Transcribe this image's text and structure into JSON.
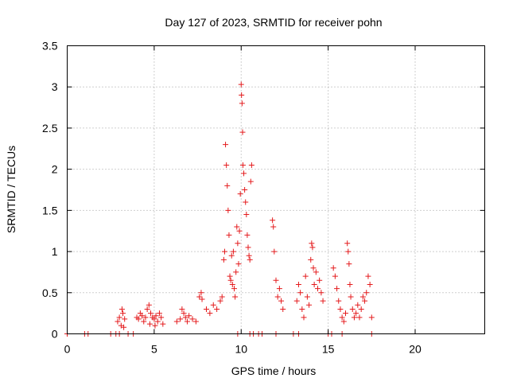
{
  "chart_data": {
    "type": "scatter",
    "title": "Day 127 of 2023, SRMTID for receiver pohn",
    "xlabel": "GPS time / hours",
    "ylabel": "SRMTID / TECUs",
    "xlim": [
      0,
      24
    ],
    "ylim": [
      0,
      3.5
    ],
    "xticks": [
      0,
      5,
      10,
      15,
      20
    ],
    "xtick_labels": [
      "0",
      "5",
      "10",
      "15",
      "20"
    ],
    "yticks": [
      0,
      0.5,
      1,
      1.5,
      2,
      2.5,
      3,
      3.5
    ],
    "ytick_labels": [
      "0",
      "0.5",
      "1",
      "1.5",
      "2",
      "2.5",
      "3",
      "3.5"
    ],
    "grid": true,
    "legend": "none",
    "marker": "+",
    "series_color": "#e41a1c",
    "series": [
      {
        "name": "SRMTID",
        "x": [
          0.0,
          1.0,
          1.2,
          2.5,
          2.8,
          3.0,
          3.5,
          3.8,
          9.8,
          10.5,
          10.7,
          11.0,
          11.2,
          12.0,
          13.0,
          13.3,
          15.0,
          15.2,
          15.8,
          17.5,
          2.9,
          3.0,
          3.1,
          3.15,
          3.2,
          3.25,
          3.3,
          4.0,
          4.1,
          4.2,
          4.3,
          4.4,
          4.5,
          4.6,
          4.7,
          4.75,
          4.8,
          4.9,
          5.0,
          5.05,
          5.1,
          5.2,
          5.3,
          5.4,
          5.5,
          6.3,
          6.5,
          6.6,
          6.7,
          6.8,
          6.9,
          7.0,
          7.2,
          7.4,
          7.6,
          7.7,
          7.75,
          8.0,
          8.2,
          8.4,
          8.6,
          8.8,
          8.9,
          9.0,
          9.05,
          9.1,
          9.15,
          9.2,
          9.25,
          9.3,
          9.35,
          9.4,
          9.45,
          9.5,
          9.55,
          9.6,
          9.65,
          9.7,
          9.75,
          9.8,
          9.85,
          9.9,
          9.95,
          10.0,
          10.02,
          10.05,
          10.08,
          10.1,
          10.15,
          10.2,
          10.25,
          10.3,
          10.35,
          10.4,
          10.45,
          10.5,
          10.55,
          10.6,
          11.8,
          11.85,
          11.9,
          12.0,
          12.1,
          12.2,
          12.3,
          12.4,
          13.2,
          13.3,
          13.4,
          13.5,
          13.6,
          13.7,
          13.8,
          13.9,
          14.0,
          14.05,
          14.1,
          14.15,
          14.2,
          14.3,
          14.4,
          14.5,
          14.6,
          14.7,
          15.3,
          15.4,
          15.5,
          15.6,
          15.7,
          15.8,
          15.9,
          16.0,
          16.1,
          16.15,
          16.2,
          16.25,
          16.3,
          16.4,
          16.5,
          16.6,
          16.7,
          16.8,
          16.9,
          17.0,
          17.1,
          17.2,
          17.3,
          17.4,
          17.5
        ],
        "y": [
          0.0,
          0.0,
          0.0,
          0.0,
          0.0,
          0.0,
          0.0,
          0.0,
          0.0,
          0.0,
          0.0,
          0.0,
          0.0,
          0.0,
          0.0,
          0.0,
          0.0,
          0.0,
          0.0,
          0.0,
          0.15,
          0.2,
          0.1,
          0.3,
          0.25,
          0.08,
          0.18,
          0.2,
          0.18,
          0.25,
          0.22,
          0.15,
          0.2,
          0.3,
          0.35,
          0.12,
          0.25,
          0.2,
          0.18,
          0.1,
          0.22,
          0.15,
          0.25,
          0.2,
          0.12,
          0.15,
          0.18,
          0.3,
          0.25,
          0.2,
          0.15,
          0.22,
          0.18,
          0.15,
          0.45,
          0.5,
          0.42,
          0.3,
          0.25,
          0.35,
          0.3,
          0.4,
          0.45,
          0.9,
          1.0,
          2.3,
          2.05,
          1.8,
          1.5,
          1.2,
          0.7,
          0.65,
          0.95,
          0.6,
          1.0,
          0.55,
          0.45,
          0.75,
          1.3,
          1.1,
          0.85,
          1.25,
          1.7,
          3.03,
          2.9,
          2.8,
          2.45,
          2.05,
          1.95,
          1.75,
          1.6,
          1.45,
          1.2,
          1.05,
          0.95,
          0.9,
          1.85,
          2.05,
          1.38,
          1.3,
          1.0,
          0.65,
          0.45,
          0.55,
          0.4,
          0.3,
          0.4,
          0.6,
          0.5,
          0.3,
          0.2,
          0.7,
          0.45,
          0.35,
          0.9,
          1.1,
          1.05,
          0.8,
          0.6,
          0.75,
          0.55,
          0.65,
          0.5,
          0.4,
          0.8,
          0.7,
          0.55,
          0.4,
          0.3,
          0.2,
          0.15,
          0.25,
          1.1,
          1.0,
          0.85,
          0.6,
          0.45,
          0.3,
          0.2,
          0.25,
          0.35,
          0.2,
          0.3,
          0.45,
          0.4,
          0.5,
          0.7,
          0.6,
          0.2
        ]
      }
    ]
  }
}
